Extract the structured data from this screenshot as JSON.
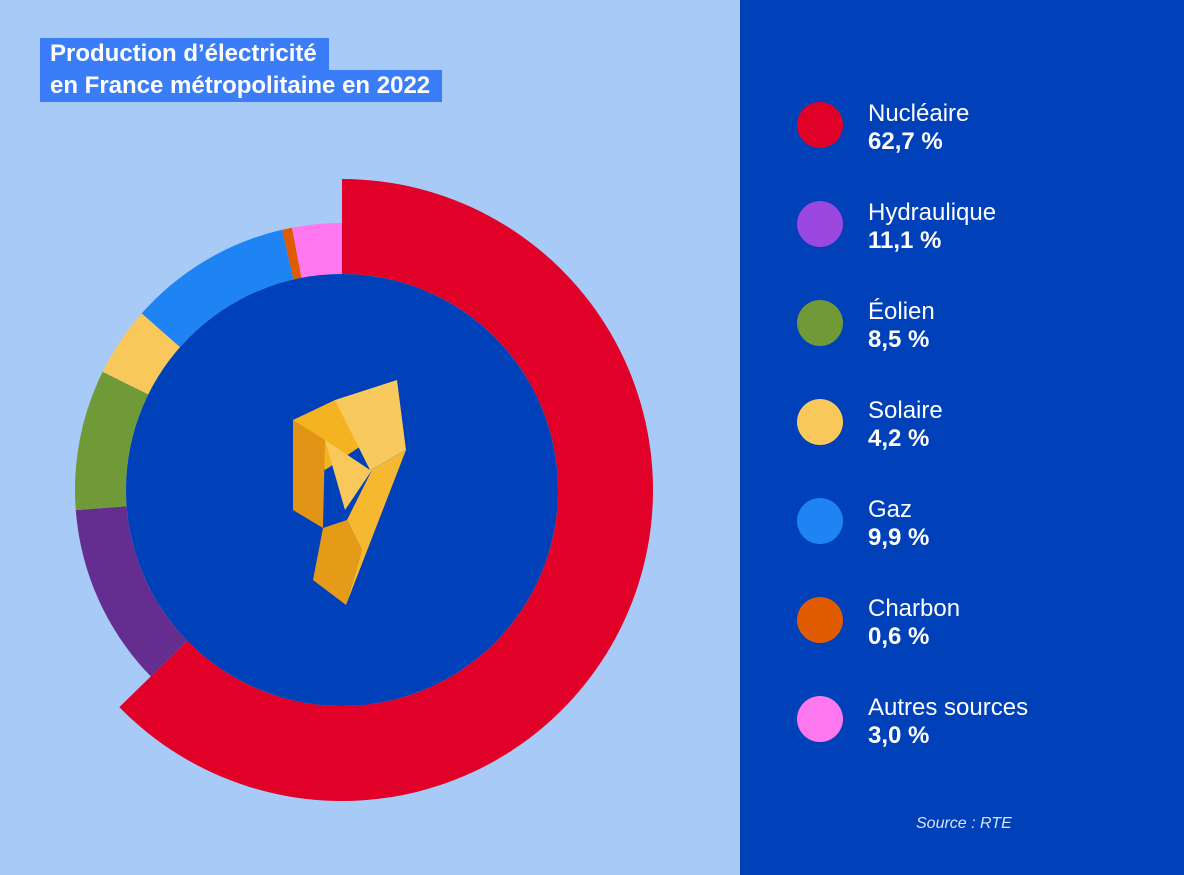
{
  "title": {
    "line1": "Production d’électricité",
    "line2": "en France métropolitaine en 2022"
  },
  "chart_data": {
    "type": "pie",
    "variant": "donut",
    "title": "Production d’électricité en France métropolitaine en 2022",
    "categories": [
      "Nucléaire",
      "Hydraulique",
      "Éolien",
      "Solaire",
      "Gaz",
      "Charbon",
      "Autres sources"
    ],
    "values": [
      62.7,
      11.1,
      8.5,
      4.2,
      9.9,
      0.6,
      3.0
    ],
    "value_labels": [
      "62,7 %",
      "11,1 %",
      "8,5 %",
      "4,2 %",
      "9,9 %",
      "0,6 %",
      "3,0 %"
    ],
    "colors": [
      "#e10028",
      "#662d91",
      "#6f9a37",
      "#f9c85b",
      "#1e84f4",
      "#e05a00",
      "#ff78f0"
    ],
    "legend_placement": "right",
    "center_icon": "lightning-bolt-icon"
  },
  "legend": {
    "dot_colors": [
      "#e10028",
      "#9b48e0",
      "#6f9a37",
      "#f9c85b",
      "#1e84f4",
      "#e05a00",
      "#ff78f0"
    ]
  },
  "source": "Source : RTE"
}
